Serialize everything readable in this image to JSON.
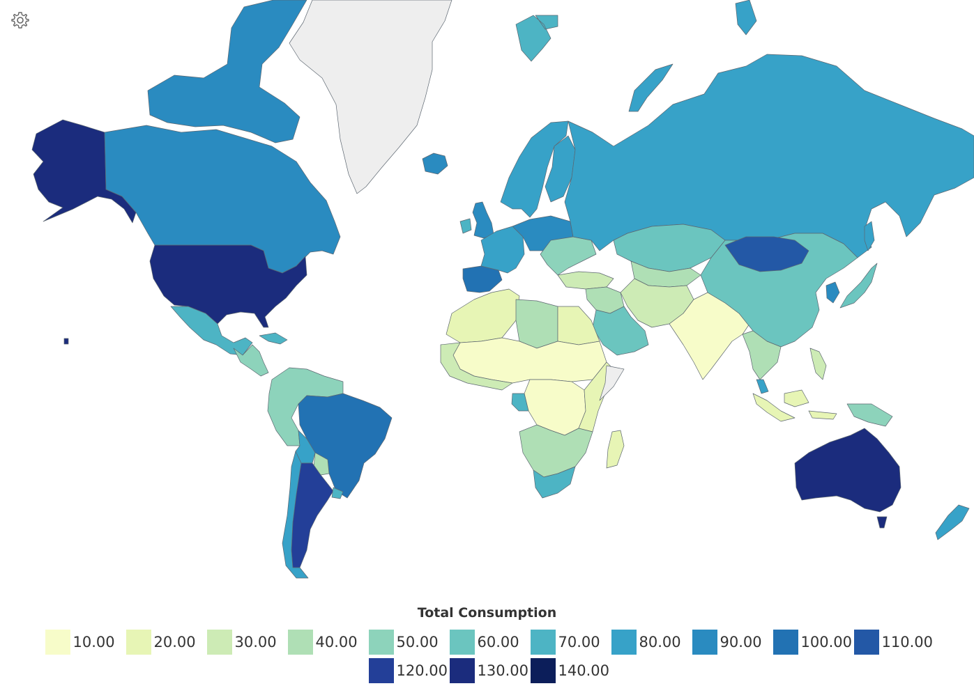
{
  "legend": {
    "title": "Total Consumption",
    "bins": [
      {
        "label": "10.00",
        "color": "#f7fcc9"
      },
      {
        "label": "20.00",
        "color": "#e7f5b5"
      },
      {
        "label": "30.00",
        "color": "#cdebb5"
      },
      {
        "label": "40.00",
        "color": "#afdfb5"
      },
      {
        "label": "50.00",
        "color": "#8dd3bb"
      },
      {
        "label": "60.00",
        "color": "#6bc5bf"
      },
      {
        "label": "70.00",
        "color": "#4db4c4"
      },
      {
        "label": "80.00",
        "color": "#37a2c8"
      },
      {
        "label": "90.00",
        "color": "#2a8bc0"
      },
      {
        "label": "100.00",
        "color": "#2272b3"
      },
      {
        "label": "110.00",
        "color": "#2358a6"
      },
      {
        "label": "120.00",
        "color": "#233f98"
      },
      {
        "label": "130.00",
        "color": "#1b2c7d"
      },
      {
        "label": "140.00",
        "color": "#0c1e5a"
      }
    ]
  },
  "nodata_color": "#eeeeee",
  "regions": [
    {
      "id": "alaska",
      "color": "#1b2c7d"
    },
    {
      "id": "canada",
      "color": "#2a8bc0"
    },
    {
      "id": "canada-islands",
      "color": "#2a8bc0"
    },
    {
      "id": "greenland",
      "color": "#eeeeee"
    },
    {
      "id": "iceland",
      "color": "#2a8bc0"
    },
    {
      "id": "usa",
      "color": "#1b2c7d"
    },
    {
      "id": "mexico",
      "color": "#4db4c4"
    },
    {
      "id": "central-america",
      "color": "#8dd3bb"
    },
    {
      "id": "cuba",
      "color": "#4db4c4"
    },
    {
      "id": "northern-south-america",
      "color": "#8dd3bb"
    },
    {
      "id": "brazil",
      "color": "#2272b3"
    },
    {
      "id": "bolivia",
      "color": "#37a2c8"
    },
    {
      "id": "paraguay",
      "color": "#afdfb5"
    },
    {
      "id": "argentina",
      "color": "#233f98"
    },
    {
      "id": "chile",
      "color": "#37a2c8"
    },
    {
      "id": "uruguay",
      "color": "#4db4c4"
    },
    {
      "id": "uk",
      "color": "#2a8bc0"
    },
    {
      "id": "ireland",
      "color": "#4db4c4"
    },
    {
      "id": "scandinavia",
      "color": "#37a2c8"
    },
    {
      "id": "finland",
      "color": "#37a2c8"
    },
    {
      "id": "iberia",
      "color": "#2272b3"
    },
    {
      "id": "western-europe",
      "color": "#37a2c8"
    },
    {
      "id": "central-europe",
      "color": "#2a8bc0"
    },
    {
      "id": "eastern-europe",
      "color": "#8dd3bb"
    },
    {
      "id": "turkey",
      "color": "#cdebb5"
    },
    {
      "id": "russia",
      "color": "#37a2c8"
    },
    {
      "id": "kazakhstan",
      "color": "#6bc5bf"
    },
    {
      "id": "central-asia",
      "color": "#afdfb5"
    },
    {
      "id": "middle-east",
      "color": "#afdfb5"
    },
    {
      "id": "arabia",
      "color": "#6bc5bf"
    },
    {
      "id": "north-africa-west",
      "color": "#e7f5b5"
    },
    {
      "id": "libya",
      "color": "#afdfb5"
    },
    {
      "id": "egypt",
      "color": "#e7f5b5"
    },
    {
      "id": "sahel",
      "color": "#f7fcc9"
    },
    {
      "id": "west-africa-coast",
      "color": "#cdebb5"
    },
    {
      "id": "central-africa",
      "color": "#f7fcc9"
    },
    {
      "id": "gabon",
      "color": "#4db4c4"
    },
    {
      "id": "east-africa",
      "color": "#e7f5b5"
    },
    {
      "id": "southern-africa",
      "color": "#afdfb5"
    },
    {
      "id": "south-africa",
      "color": "#4db4c4"
    },
    {
      "id": "somalia",
      "color": "#eeeeee"
    },
    {
      "id": "madagascar",
      "color": "#e7f5b5"
    },
    {
      "id": "iran-afghanistan",
      "color": "#cdebb5"
    },
    {
      "id": "south-asia",
      "color": "#f7fcc9"
    },
    {
      "id": "china",
      "color": "#6bc5bf"
    },
    {
      "id": "mongolia",
      "color": "#2358a6"
    },
    {
      "id": "korea",
      "color": "#2a8bc0"
    },
    {
      "id": "japan",
      "color": "#6bc5bf"
    },
    {
      "id": "southeast-asia",
      "color": "#afdfb5"
    },
    {
      "id": "malaysia",
      "color": "#37a2c8"
    },
    {
      "id": "indonesia",
      "color": "#e7f5b5"
    },
    {
      "id": "new-guinea",
      "color": "#8dd3bb"
    },
    {
      "id": "philippines",
      "color": "#cdebb5"
    },
    {
      "id": "australia",
      "color": "#1b2c7d"
    },
    {
      "id": "tasmania",
      "color": "#1b2c7d"
    },
    {
      "id": "new-zealand",
      "color": "#37a2c8"
    },
    {
      "id": "svalbard",
      "color": "#4db4c4"
    },
    {
      "id": "novaya-zemlya",
      "color": "#37a2c8"
    },
    {
      "id": "new-siberian-islands",
      "color": "#37a2c8"
    },
    {
      "id": "sakhalin",
      "color": "#37a2c8"
    },
    {
      "id": "hawaii",
      "color": "#1b2c7d"
    }
  ]
}
